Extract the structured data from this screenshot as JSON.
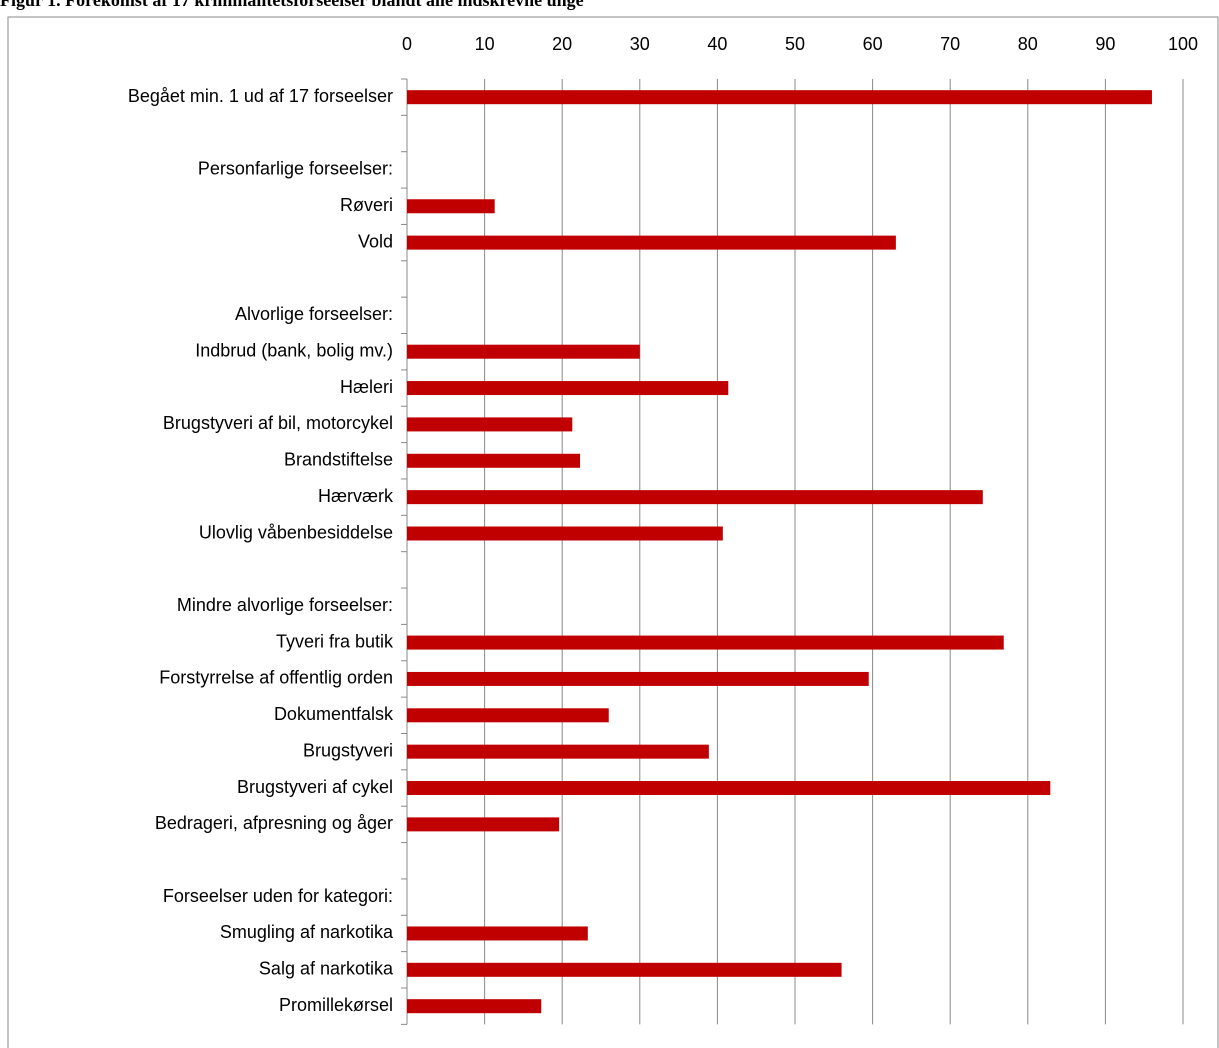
{
  "chart_data": {
    "type": "bar",
    "orientation": "horizontal",
    "title": "Figur 1. Forekomst af 17 kriminalitetsforseelser blandt alle indskrevne unge",
    "categories": [
      "Begået min. 1 ud af 17 forseelser",
      null,
      "Personfarlige forseelser:",
      "Røveri",
      "Vold",
      null,
      "Alvorlige forseelser:",
      "Indbrud (bank, bolig mv.)",
      "Hæleri",
      "Brugstyveri af bil, motorcykel",
      "Brandstiftelse",
      "Hærværk",
      "Ulovlig våbenbesiddelse",
      null,
      "Mindre alvorlige forseelser:",
      "Tyveri fra butik",
      "Forstyrrelse af offentlig orden",
      "Dokumentfalsk",
      "Brugstyveri",
      "Brugstyveri af cykel",
      "Bedrageri, afpresning og åger",
      null,
      "Forseelser uden for kategori:",
      "Smugling af narkotika",
      "Salg af narkotika",
      "Promillekørsel"
    ],
    "values": [
      96,
      null,
      null,
      11.3,
      63,
      null,
      null,
      30,
      41.4,
      21.3,
      22.3,
      74.2,
      40.7,
      null,
      null,
      76.9,
      59.5,
      26,
      38.9,
      82.9,
      19.6,
      null,
      null,
      23.3,
      56,
      17.3
    ],
    "color": "#c00000",
    "xlim": [
      0,
      100
    ],
    "xticks": [
      0,
      10,
      20,
      30,
      40,
      50,
      60,
      70,
      80,
      90,
      100
    ],
    "grid": true
  }
}
